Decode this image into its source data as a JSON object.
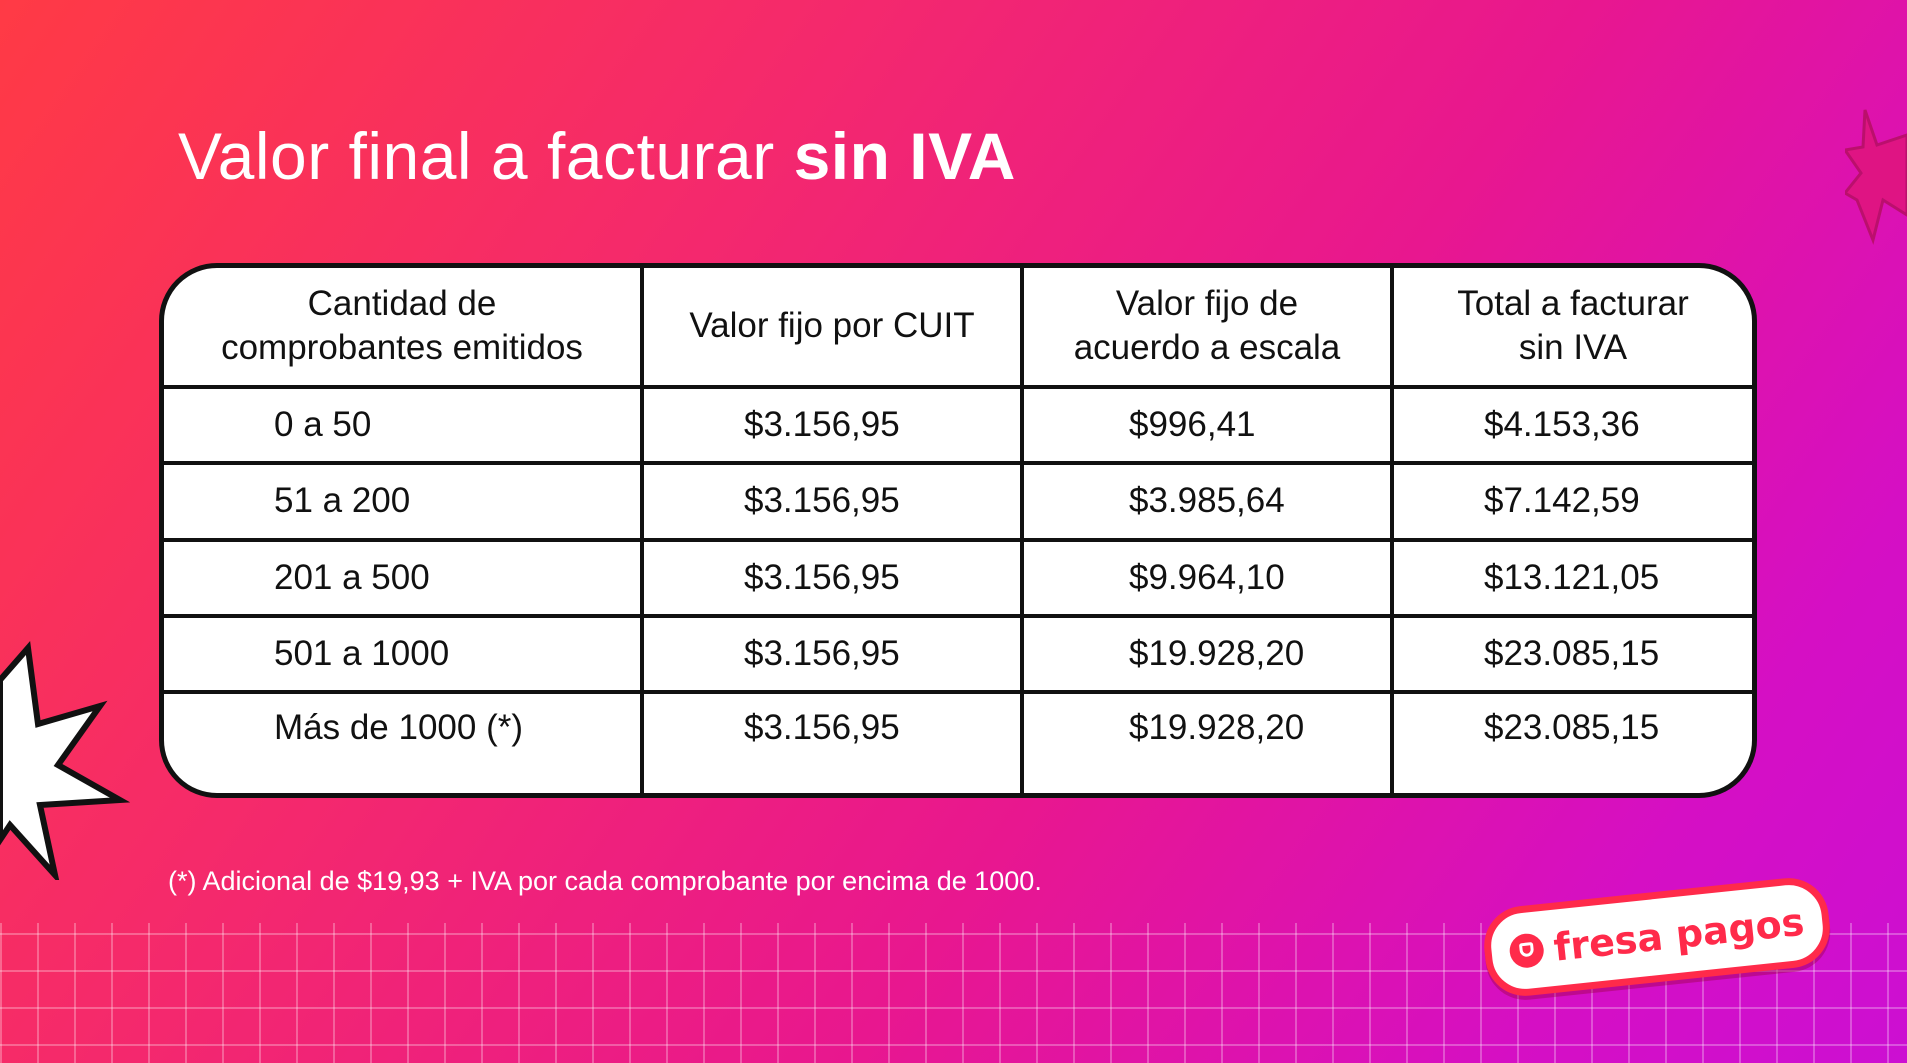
{
  "title": {
    "regular": "Valor final a facturar ",
    "bold": "sin IVA"
  },
  "table": {
    "headers": [
      "Cantidad de comprobantes emitidos",
      "Valor fijo por CUIT",
      "Valor fijo de acuerdo a escala",
      "Total a facturar sin IVA"
    ],
    "header_lines": [
      [
        "Cantidad de",
        "comprobantes emitidos"
      ],
      [
        "Valor fijo por CUIT"
      ],
      [
        "Valor fijo de",
        "acuerdo a escala"
      ],
      [
        "Total a facturar",
        "sin IVA"
      ]
    ],
    "rows": [
      [
        "0 a 50",
        "$3.156,95",
        "$996,41",
        "$4.153,36"
      ],
      [
        "51 a 200",
        "$3.156,95",
        "$3.985,64",
        "$7.142,59"
      ],
      [
        "201 a 500",
        "$3.156,95",
        "$9.964,10",
        "$13.121,05"
      ],
      [
        "501 a 1000",
        "$3.156,95",
        "$19.928,20",
        "$23.085,15"
      ],
      [
        "Más de 1000 (*)",
        "$3.156,95",
        "$19.928,20",
        "$23.085,15"
      ]
    ]
  },
  "footnote": "(*) Adicional de $19,93 + IVA por cada comprobante por encima de 1000.",
  "logo": {
    "text": "fresa pagos",
    "icon": "bag-icon"
  },
  "colors": {
    "accent": "#ff2a4a",
    "gradient_start": "#ff3a45",
    "gradient_end": "#cc0fd2"
  }
}
